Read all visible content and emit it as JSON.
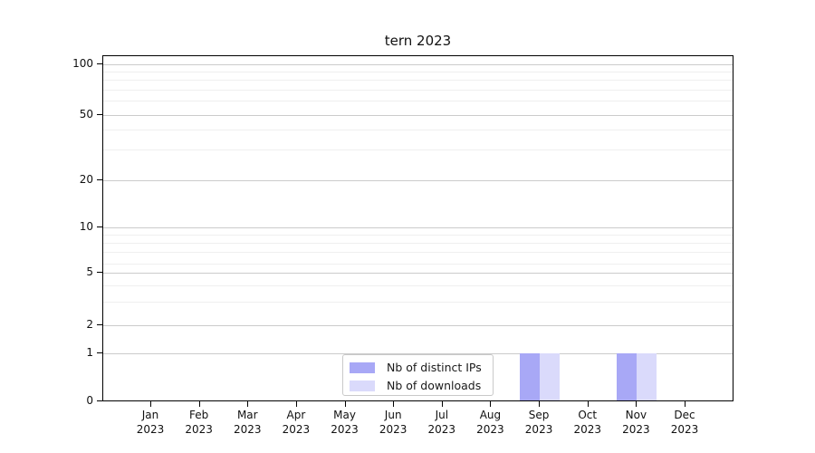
{
  "title": "tern 2023",
  "colors": {
    "distinct_ips": "#a8a8f6",
    "downloads": "#dadafb",
    "grid_major": "#cbcbcb",
    "grid_minor": "#efefef",
    "axis": "#000000"
  },
  "legend": {
    "items": [
      {
        "label": "Nb of distinct IPs",
        "color": "#a8a8f6"
      },
      {
        "label": "Nb of downloads",
        "color": "#dadafb"
      }
    ]
  },
  "chart_data": {
    "type": "bar",
    "title": "tern 2023",
    "categories": [
      "Jan 2023",
      "Feb 2023",
      "Mar 2023",
      "Apr 2023",
      "May 2023",
      "Jun 2023",
      "Jul 2023",
      "Aug 2023",
      "Sep 2023",
      "Oct 2023",
      "Nov 2023",
      "Dec 2023"
    ],
    "series": [
      {
        "name": "Nb of distinct IPs",
        "color": "#a8a8f6",
        "values": [
          0,
          0,
          0,
          0,
          0,
          0,
          0,
          0,
          1,
          0,
          1,
          0
        ]
      },
      {
        "name": "Nb of downloads",
        "color": "#dadafb",
        "values": [
          0,
          0,
          0,
          0,
          0,
          0,
          0,
          0,
          1,
          0,
          1,
          0
        ]
      }
    ],
    "yscale": "symlog",
    "yticks": [
      0,
      1,
      2,
      5,
      10,
      20,
      50,
      100
    ],
    "ylim": [
      0,
      112
    ],
    "xlabel": "",
    "ylabel": "",
    "grid": "horizontal major and minor gridlines",
    "legend_position": "lower center inside plot"
  }
}
